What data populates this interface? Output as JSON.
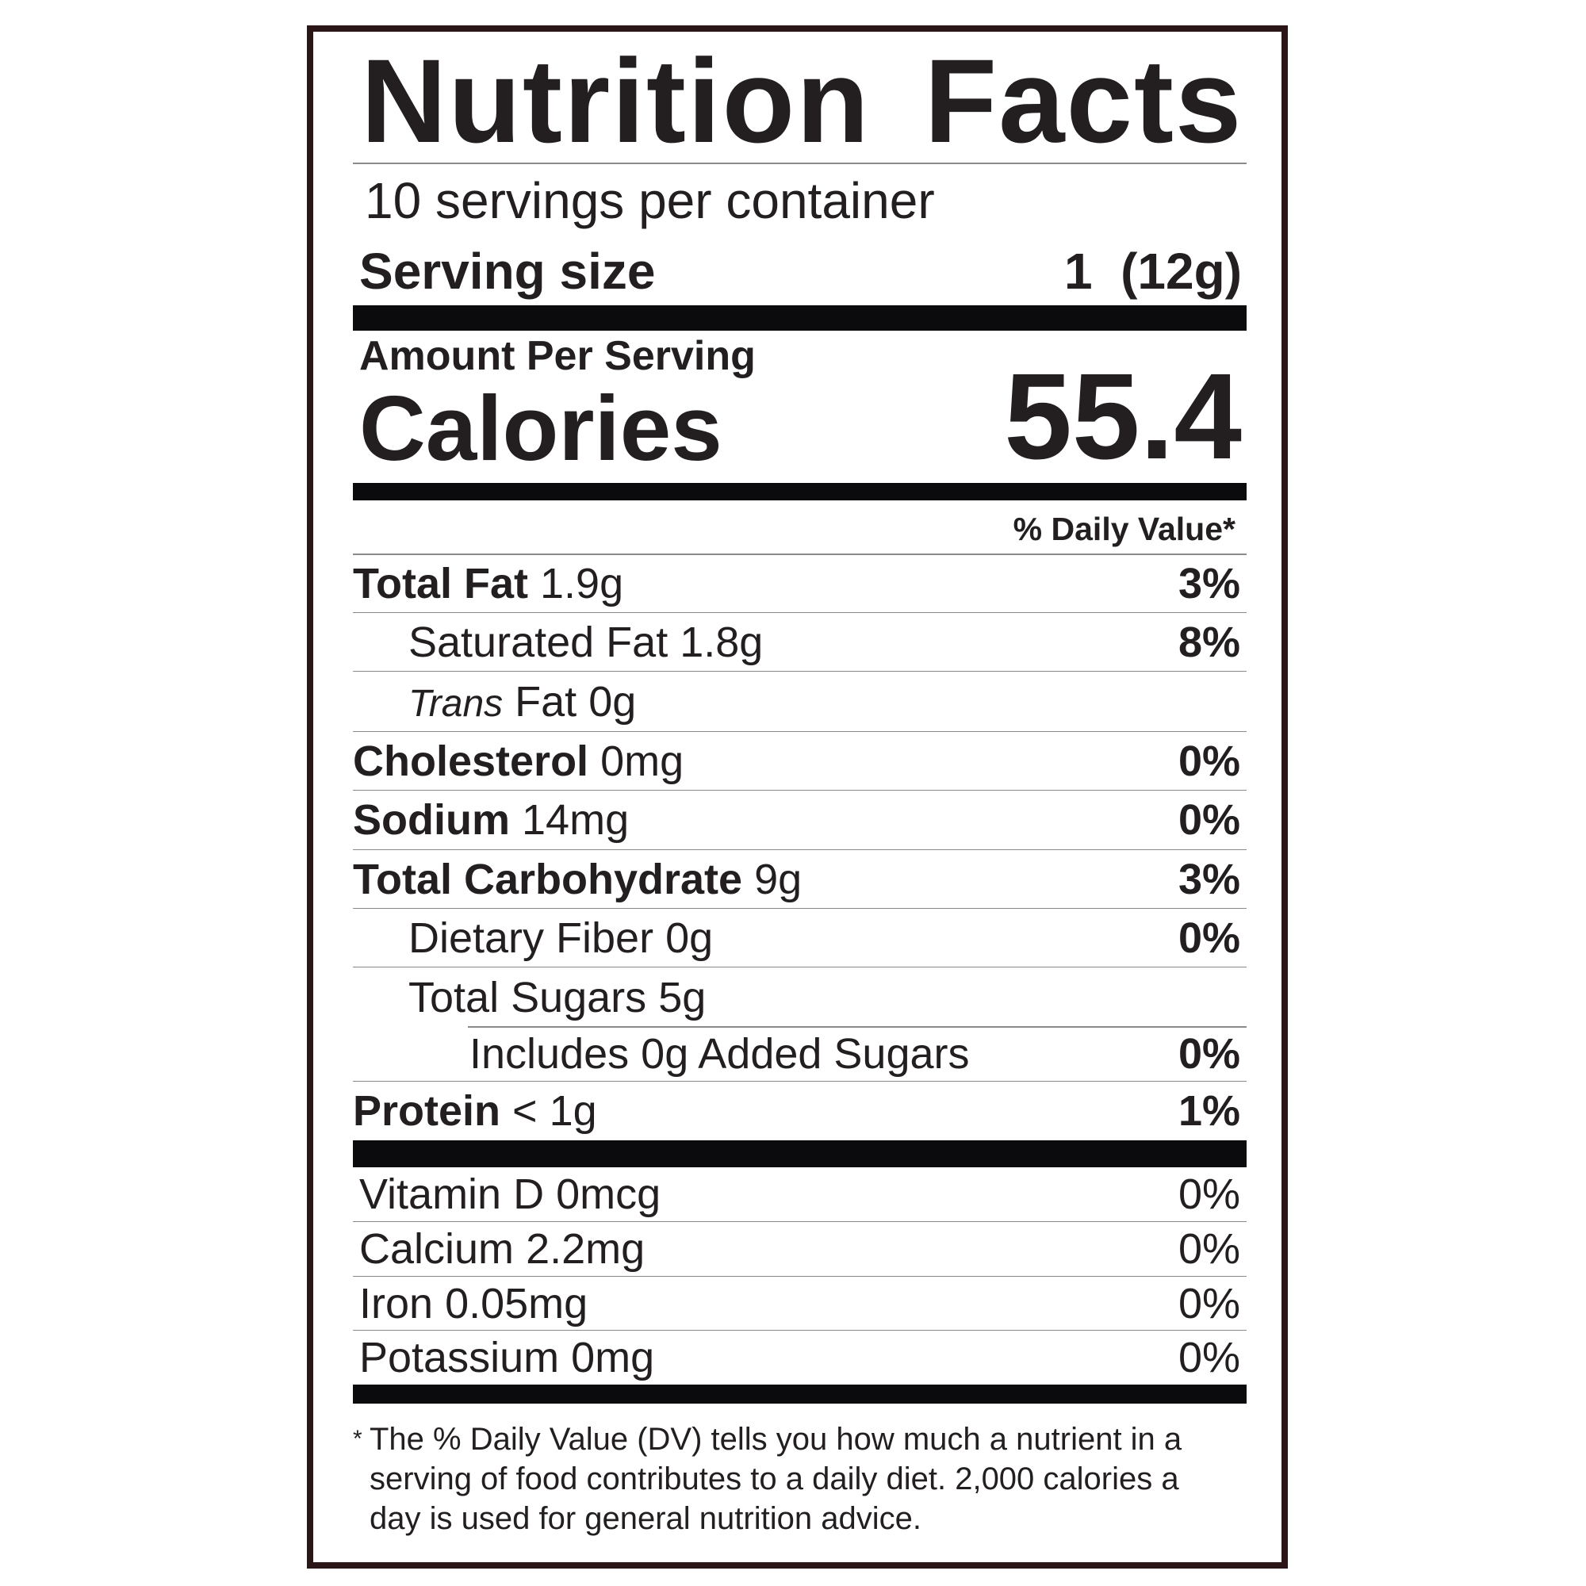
{
  "title": "Nutrition Facts",
  "servings": "10 servings per container",
  "serving_size": {
    "label": "Serving size",
    "value": "1  (12g)"
  },
  "amount_per_serving": "Amount Per Serving",
  "calories": {
    "label": "Calories",
    "value": "55.4"
  },
  "daily_value_header": "% Daily Value*",
  "nutrients": [
    {
      "name": "Total Fat",
      "amount": "1.9g",
      "dv": "3%"
    },
    {
      "name": "Saturated Fat",
      "amount": "1.8g",
      "dv": "8%"
    },
    {
      "name_italic": "Trans",
      "name": "Fat",
      "amount": "0g"
    },
    {
      "name": "Cholesterol",
      "amount": "0mg",
      "dv": "0%"
    },
    {
      "name": "Sodium",
      "amount": "14mg",
      "dv": "0%"
    },
    {
      "name": "Total Carbohydrate",
      "amount": "9g",
      "dv": "3%"
    },
    {
      "name": "Dietary Fiber",
      "amount": "0g",
      "dv": "0%"
    },
    {
      "name": "Total Sugars",
      "amount": "5g"
    },
    {
      "prefix": "Includes",
      "amount": "0g",
      "name": "Added Sugars",
      "dv": "0%"
    },
    {
      "name": "Protein",
      "amount": "< 1g",
      "dv": "1%"
    }
  ],
  "vitamins": [
    {
      "name": "Vitamin D",
      "amount": "0mcg",
      "dv": "0%"
    },
    {
      "name": "Calcium",
      "amount": "2.2mg",
      "dv": "0%"
    },
    {
      "name": "Iron",
      "amount": "0.05mg",
      "dv": "0%"
    },
    {
      "name": "Potassium",
      "amount": "0mg",
      "dv": "0%"
    }
  ],
  "footnote": {
    "mark": "*",
    "lines": [
      "The % Daily Value (DV) tells you how much a nutrient in a",
      "serving of food contributes to a daily diet. 2,000 calories a",
      "day is used for general nutrition advice."
    ]
  }
}
